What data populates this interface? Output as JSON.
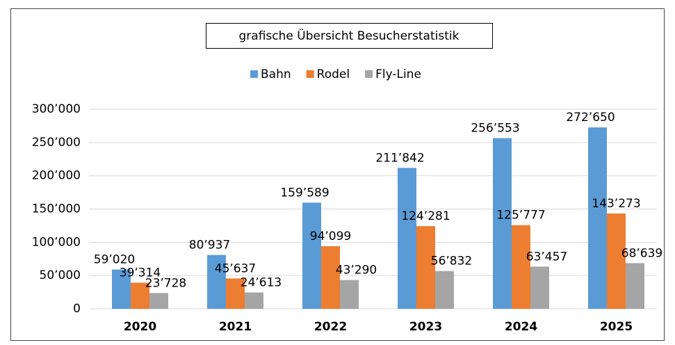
{
  "chart_data": {
    "type": "bar",
    "title": "grafische Übersicht Besucherstatistik",
    "categories": [
      "2020",
      "2021",
      "2022",
      "2023",
      "2024",
      "2025"
    ],
    "series": [
      {
        "name": "Bahn",
        "color": "#5b9bd5",
        "values": [
          59020,
          80937,
          159589,
          211842,
          256553,
          272650
        ],
        "value_labels": [
          "59’020",
          "80’937",
          "159’589",
          "211’842",
          "256’553",
          "272’650"
        ]
      },
      {
        "name": "Rodel",
        "color": "#ed7d31",
        "values": [
          39314,
          45637,
          94099,
          124281,
          125777,
          143273
        ],
        "value_labels": [
          "39’314",
          "45’637",
          "94’099",
          "124’281",
          "125’777",
          "143’273"
        ]
      },
      {
        "name": "Fly-Line",
        "color": "#a5a5a5",
        "values": [
          23728,
          24613,
          43290,
          56832,
          63457,
          68639
        ],
        "value_labels": [
          "23’728",
          "24’613",
          "43’290",
          "56’832",
          "63’457",
          "68’639"
        ]
      }
    ],
    "ylim": [
      0,
      300000
    ],
    "yticks": [
      0,
      {
        "value": 50000,
        "label": "50’000"
      },
      {
        "value": 100000,
        "label": "100’000"
      },
      {
        "value": 150000,
        "label": "150’000"
      },
      {
        "value": 200000,
        "label": "200’000"
      },
      {
        "value": 250000,
        "label": "250’000"
      },
      {
        "value": 300000,
        "label": "300’000"
      }
    ],
    "grid": true,
    "legend": "top"
  }
}
